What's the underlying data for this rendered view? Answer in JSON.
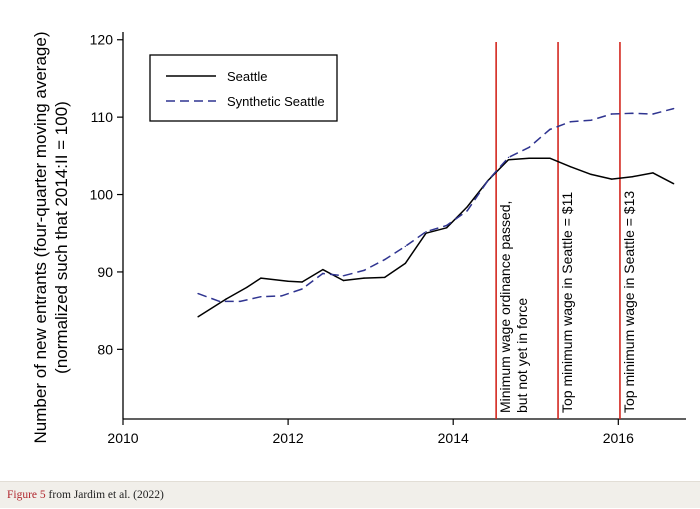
{
  "chart_data": {
    "type": "line",
    "title": "",
    "xlabel": "",
    "ylabel_lines": [
      "Number of new entrants (four-quarter moving average)",
      "(normalized such that 2014:II = 100)"
    ],
    "xlim": [
      2010,
      2016.82
    ],
    "ylim": [
      71,
      121
    ],
    "xticks": [
      2010,
      2012,
      2014,
      2016
    ],
    "yticks": [
      80,
      90,
      100,
      110,
      120
    ],
    "grid": false,
    "legend_position": "top-left",
    "series": [
      {
        "name": "Seattle",
        "style": "solid",
        "color": "#000000",
        "x": [
          2010.91,
          2011.25,
          2011.5,
          2011.67,
          2012.0,
          2012.17,
          2012.42,
          2012.67,
          2012.92,
          2013.17,
          2013.42,
          2013.67,
          2013.92,
          2014.17,
          2014.42,
          2014.67,
          2014.92,
          2015.17,
          2015.42,
          2015.67,
          2015.92,
          2016.17,
          2016.42,
          2016.67
        ],
        "values": [
          84.2,
          86.5,
          88.0,
          89.2,
          88.8,
          88.7,
          90.3,
          88.9,
          89.2,
          89.3,
          91.1,
          95.0,
          95.7,
          98.4,
          101.8,
          104.5,
          104.7,
          104.7,
          103.6,
          102.6,
          102.0,
          102.3,
          102.8,
          101.4
        ]
      },
      {
        "name": "Synthetic Seattle",
        "style": "dashed",
        "color": "#2f3490",
        "x": [
          2010.91,
          2011.17,
          2011.42,
          2011.67,
          2011.92,
          2012.17,
          2012.42,
          2012.67,
          2012.92,
          2013.17,
          2013.42,
          2013.67,
          2013.92,
          2014.17,
          2014.42,
          2014.67,
          2014.92,
          2015.17,
          2015.42,
          2015.67,
          2015.92,
          2016.17,
          2016.42,
          2016.67
        ],
        "values": [
          87.2,
          86.2,
          86.2,
          86.8,
          86.9,
          87.8,
          89.8,
          89.5,
          90.2,
          91.6,
          93.3,
          95.2,
          96.0,
          97.9,
          101.8,
          104.8,
          106.1,
          108.4,
          109.4,
          109.6,
          110.4,
          110.5,
          110.4,
          111.1
        ]
      }
    ],
    "vlines": [
      {
        "x": 2014.52,
        "color": "#d3271f",
        "label_lines": [
          "Minimum wage ordinance passed,",
          "but not yet in force"
        ]
      },
      {
        "x": 2015.27,
        "color": "#d3271f",
        "label_lines": [
          "Top minimum wage in Seattle = $11"
        ]
      },
      {
        "x": 2016.02,
        "color": "#d3271f",
        "label_lines": [
          "Top minimum wage in Seattle = $13"
        ]
      }
    ]
  },
  "caption": {
    "figure_label": "Figure 5",
    "source_text": "from Jardim et al. (2022)"
  }
}
